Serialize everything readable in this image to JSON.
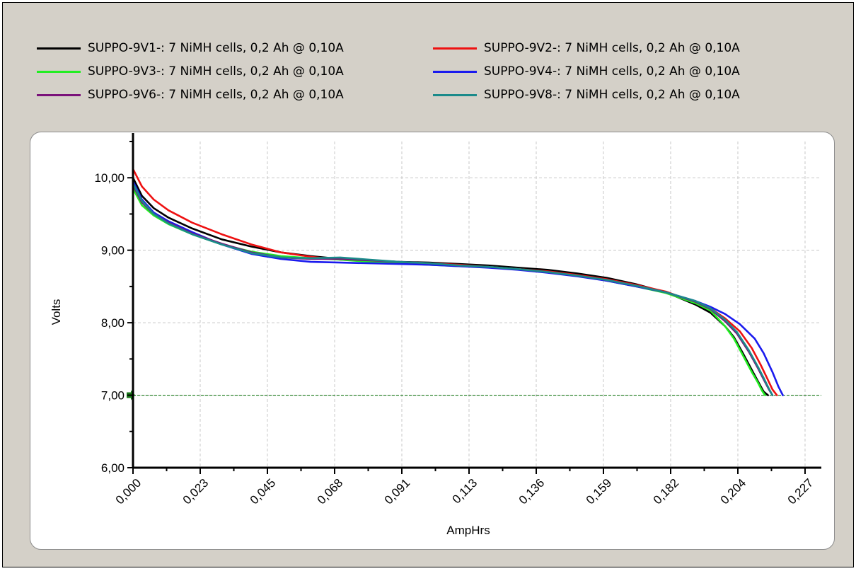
{
  "chart_data": {
    "type": "line",
    "title": "",
    "xlabel": "AmpHrs",
    "ylabel": "Volts",
    "xlim": [
      0,
      0.2325
    ],
    "ylim": [
      6.0,
      10.5
    ],
    "x_ticks": [
      "0,000",
      "0,023",
      "0,045",
      "0,068",
      "0,091",
      "0,113",
      "0,136",
      "0,159",
      "0,182",
      "0,204",
      "0,227"
    ],
    "x_tick_values": [
      0,
      0.0227,
      0.0454,
      0.0681,
      0.0908,
      0.1135,
      0.1362,
      0.1589,
      0.1816,
      0.2043,
      0.227
    ],
    "y_ticks": [
      "6,00",
      "7,00",
      "8,00",
      "9,00",
      "10,00"
    ],
    "y_tick_values": [
      6,
      7,
      8,
      9,
      10
    ],
    "grid": true,
    "legend_position": "top",
    "cutoff_line": {
      "y": 7.0,
      "color": "#1a7a1a"
    },
    "series": [
      {
        "name": "SUPPO-9V1-: 7 NiMH cells, 0,2 Ah @ 0,10A",
        "color": "#000000",
        "x": [
          0,
          0.003,
          0.007,
          0.012,
          0.02,
          0.03,
          0.04,
          0.05,
          0.06,
          0.07,
          0.08,
          0.09,
          0.1,
          0.11,
          0.12,
          0.13,
          0.14,
          0.15,
          0.16,
          0.17,
          0.18,
          0.19,
          0.195,
          0.2,
          0.203,
          0.206,
          0.209,
          0.211,
          0.213,
          0.2145
        ],
        "y": [
          10.0,
          9.75,
          9.58,
          9.45,
          9.3,
          9.15,
          9.05,
          8.97,
          8.92,
          8.88,
          8.86,
          8.84,
          8.83,
          8.81,
          8.79,
          8.76,
          8.73,
          8.68,
          8.62,
          8.53,
          8.42,
          8.25,
          8.14,
          7.95,
          7.8,
          7.58,
          7.35,
          7.2,
          7.05,
          7.0
        ]
      },
      {
        "name": "SUPPO-9V2-: 7 NiMH cells, 0,2 Ah @ 0,10A",
        "color": "#ee1111",
        "x": [
          0,
          0.003,
          0.007,
          0.012,
          0.02,
          0.03,
          0.04,
          0.05,
          0.06,
          0.07,
          0.08,
          0.09,
          0.1,
          0.11,
          0.12,
          0.13,
          0.14,
          0.15,
          0.16,
          0.17,
          0.18,
          0.19,
          0.195,
          0.2,
          0.205,
          0.209,
          0.212,
          0.214,
          0.216,
          0.2175
        ],
        "y": [
          10.12,
          9.88,
          9.7,
          9.55,
          9.38,
          9.22,
          9.08,
          8.97,
          8.91,
          8.87,
          8.85,
          8.83,
          8.82,
          8.8,
          8.77,
          8.74,
          8.71,
          8.66,
          8.6,
          8.52,
          8.43,
          8.28,
          8.2,
          8.06,
          7.88,
          7.65,
          7.42,
          7.25,
          7.08,
          7.0
        ]
      },
      {
        "name": "SUPPO-9V3-: 7 NiMH cells, 0,2 Ah @ 0,10A",
        "color": "#22ee22",
        "x": [
          0,
          0.003,
          0.007,
          0.012,
          0.02,
          0.03,
          0.04,
          0.05,
          0.06,
          0.07,
          0.08,
          0.09,
          0.1,
          0.11,
          0.12,
          0.13,
          0.14,
          0.15,
          0.16,
          0.17,
          0.18,
          0.19,
          0.195,
          0.2,
          0.203,
          0.206,
          0.209,
          0.211,
          0.2125,
          0.2135
        ],
        "y": [
          9.85,
          9.62,
          9.48,
          9.36,
          9.22,
          9.08,
          8.98,
          8.92,
          8.89,
          8.87,
          8.84,
          8.82,
          8.8,
          8.78,
          8.77,
          8.74,
          8.7,
          8.65,
          8.58,
          8.5,
          8.41,
          8.27,
          8.17,
          7.95,
          7.78,
          7.55,
          7.32,
          7.18,
          7.06,
          7.0
        ]
      },
      {
        "name": "SUPPO-9V4-: 7 NiMH cells, 0,2 Ah @ 0,10A",
        "color": "#1a1aee",
        "x": [
          0,
          0.003,
          0.007,
          0.012,
          0.02,
          0.03,
          0.04,
          0.05,
          0.06,
          0.07,
          0.08,
          0.09,
          0.1,
          0.11,
          0.12,
          0.13,
          0.14,
          0.15,
          0.16,
          0.17,
          0.18,
          0.19,
          0.195,
          0.2,
          0.205,
          0.21,
          0.213,
          0.216,
          0.218,
          0.2195
        ],
        "y": [
          9.95,
          9.7,
          9.52,
          9.4,
          9.25,
          9.08,
          8.95,
          8.88,
          8.84,
          8.83,
          8.82,
          8.81,
          8.8,
          8.78,
          8.76,
          8.73,
          8.69,
          8.64,
          8.58,
          8.5,
          8.42,
          8.3,
          8.22,
          8.12,
          7.98,
          7.78,
          7.58,
          7.32,
          7.12,
          7.0
        ]
      },
      {
        "name": "SUPPO-9V6-: 7 NiMH cells, 0,2 Ah @ 0,10A",
        "color": "#7a117a",
        "x": [
          0,
          0.003,
          0.007,
          0.012,
          0.02,
          0.03,
          0.04,
          0.05,
          0.06,
          0.07,
          0.08,
          0.09,
          0.1,
          0.11,
          0.12,
          0.13,
          0.14,
          0.15,
          0.16,
          0.17,
          0.18,
          0.19,
          0.195,
          0.2,
          0.204,
          0.208,
          0.211,
          0.213,
          0.2148,
          0.216
        ],
        "y": [
          9.9,
          9.66,
          9.5,
          9.38,
          9.23,
          9.09,
          8.97,
          8.9,
          8.88,
          8.88,
          8.86,
          8.84,
          8.82,
          8.79,
          8.77,
          8.74,
          8.7,
          8.65,
          8.59,
          8.51,
          8.42,
          8.29,
          8.19,
          8.02,
          7.85,
          7.6,
          7.38,
          7.22,
          7.08,
          7.0
        ]
      },
      {
        "name": "SUPPO-9V8-: 7 NiMH cells, 0,2 Ah @ 0,10A",
        "color": "#1a8a8a",
        "x": [
          0,
          0.003,
          0.007,
          0.012,
          0.02,
          0.03,
          0.04,
          0.05,
          0.06,
          0.07,
          0.08,
          0.09,
          0.1,
          0.11,
          0.12,
          0.13,
          0.14,
          0.15,
          0.16,
          0.17,
          0.18,
          0.19,
          0.195,
          0.2,
          0.204,
          0.208,
          0.211,
          0.213,
          0.2148,
          0.216
        ],
        "y": [
          9.92,
          9.68,
          9.5,
          9.37,
          9.22,
          9.08,
          8.96,
          8.9,
          8.89,
          8.9,
          8.87,
          8.84,
          8.82,
          8.79,
          8.77,
          8.74,
          8.7,
          8.65,
          8.59,
          8.51,
          8.42,
          8.3,
          8.2,
          8.04,
          7.87,
          7.62,
          7.4,
          7.24,
          7.09,
          7.0
        ]
      }
    ]
  }
}
